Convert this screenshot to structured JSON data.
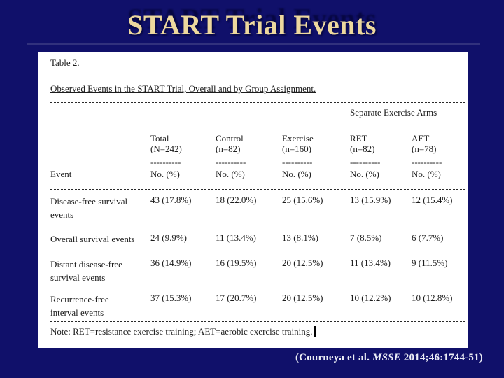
{
  "slide": {
    "title": "START Trial Events",
    "citation": {
      "prefix": "(Courneya et al. ",
      "journal": "MSSE",
      "suffix": " 2014;46:1744-51)"
    }
  },
  "table": {
    "label": "Table 2.",
    "caption": "Observed Events in the START Trial, Overall and by Group Assignment.",
    "span_header": "Separate Exercise Arms",
    "event_header": "Event",
    "col_dash": "----------",
    "columns": [
      {
        "name": "Total",
        "n": "(N=242)",
        "unit": "No. (%)"
      },
      {
        "name": "Control",
        "n": "(n=82)",
        "unit": "No. (%)"
      },
      {
        "name": "Exercise",
        "n": "(n=160)",
        "unit": "No. (%)"
      },
      {
        "name": "RET",
        "n": "(n=82)",
        "unit": "No. (%)"
      },
      {
        "name": "AET",
        "n": "(n=78)",
        "unit": "No. (%)"
      }
    ],
    "rows": [
      {
        "event": "Disease-free survival\nevents",
        "values": [
          "43 (17.8%)",
          "18 (22.0%)",
          "25 (15.6%)",
          "13 (15.9%)",
          "12 (15.4%)"
        ]
      },
      {
        "event": "Overall survival events",
        "values": [
          "24 (9.9%)",
          "11 (13.4%)",
          "13 (8.1%)",
          "7 (8.5%)",
          "6 (7.7%)"
        ]
      },
      {
        "event": "Distant disease-free\nsurvival events",
        "values": [
          "36 (14.9%)",
          "16 (19.5%)",
          "20 (12.5%)",
          "11 (13.4%)",
          "9 (11.5%)"
        ]
      },
      {
        "event": "Recurrence-free\ninterval events",
        "values": [
          "37 (15.3%)",
          "17 (20.7%)",
          "20 (12.5%)",
          "10 (12.2%)",
          "10 (12.8%)"
        ]
      }
    ],
    "note": "Note: RET=resistance exercise training; AET=aerobic exercise training."
  },
  "colors": {
    "slide_background": "#10106a",
    "title_gold": "#edd89e",
    "card_background": "#ffffff",
    "table_text": "#1c1c1c",
    "citation_text": "#eceef6"
  }
}
